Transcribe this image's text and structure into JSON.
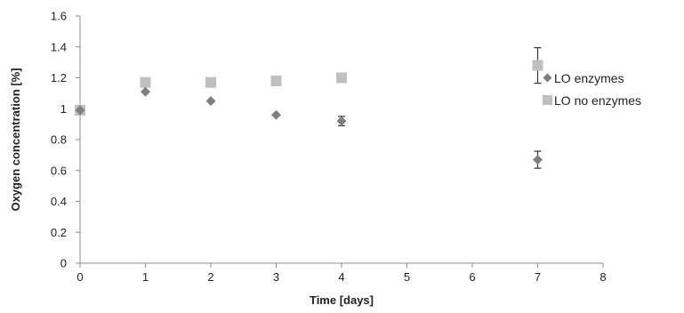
{
  "chart_data": {
    "type": "scatter",
    "title": "",
    "xlabel": "Time [days]",
    "ylabel": "Oxygen concentration [%]",
    "xlim": [
      0,
      8
    ],
    "ylim": [
      0,
      1.6
    ],
    "x_ticks": [
      "0",
      "1",
      "2",
      "3",
      "4",
      "5",
      "6",
      "7",
      "8"
    ],
    "y_ticks": [
      "0",
      "0.2",
      "0.4",
      "0.6",
      "0.8",
      "1",
      "1.2",
      "1.4",
      "1.6"
    ],
    "grid": false,
    "legend_position": "right",
    "series": [
      {
        "name": "LO enzymes",
        "marker": "diamond",
        "color": "#7f7f7f",
        "x": [
          0,
          1,
          2,
          3,
          4,
          7
        ],
        "y": [
          0.99,
          1.11,
          1.05,
          0.96,
          0.92,
          0.67
        ],
        "error": [
          0,
          0,
          0,
          0,
          0.03,
          0.055
        ]
      },
      {
        "name": "LO no enzymes",
        "marker": "square",
        "color": "#bfbfbf",
        "x": [
          0,
          1,
          2,
          3,
          4,
          7
        ],
        "y": [
          0.99,
          1.17,
          1.17,
          1.18,
          1.2,
          1.28
        ],
        "error": [
          0,
          0,
          0,
          0,
          0.02,
          0.115
        ]
      }
    ]
  }
}
